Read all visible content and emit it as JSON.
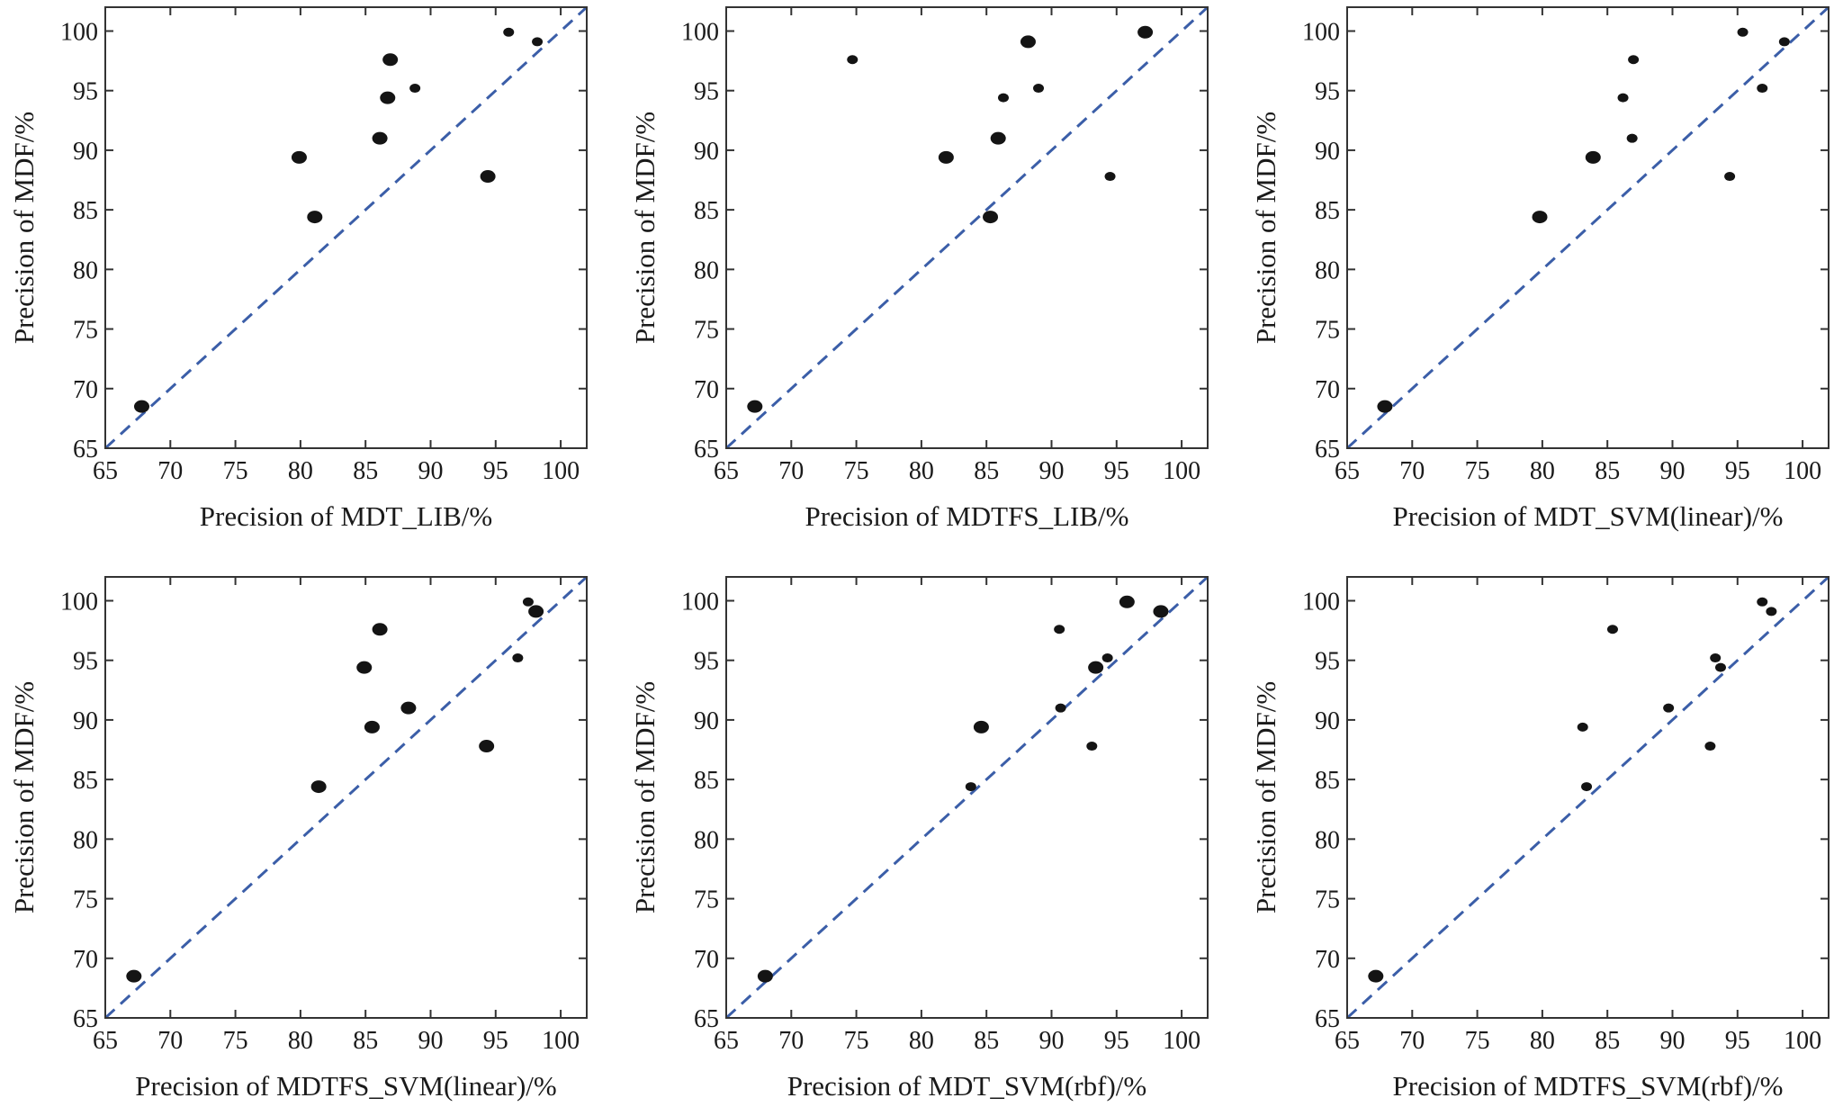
{
  "chart_data": [
    {
      "type": "scatter",
      "xlabel": "Precision of MDT_LIB/%",
      "ylabel": "Precision of  MDF/%",
      "xlim": [
        65,
        102
      ],
      "ylim": [
        65,
        102
      ],
      "xticks": [
        65,
        70,
        75,
        80,
        85,
        90,
        95,
        100
      ],
      "yticks": [
        65,
        70,
        75,
        80,
        85,
        90,
        95,
        100
      ],
      "reference_line": "y = x",
      "points": [
        {
          "x": 67.8,
          "y": 68.5,
          "size": "large"
        },
        {
          "x": 79.9,
          "y": 89.4,
          "size": "large"
        },
        {
          "x": 81.1,
          "y": 84.4,
          "size": "large"
        },
        {
          "x": 86.1,
          "y": 91.0,
          "size": "large"
        },
        {
          "x": 86.7,
          "y": 94.4,
          "size": "large"
        },
        {
          "x": 86.9,
          "y": 97.6,
          "size": "large"
        },
        {
          "x": 88.8,
          "y": 95.2,
          "size": "small"
        },
        {
          "x": 94.4,
          "y": 87.8,
          "size": "large"
        },
        {
          "x": 96.0,
          "y": 99.9,
          "size": "small"
        },
        {
          "x": 98.2,
          "y": 99.1,
          "size": "small"
        }
      ]
    },
    {
      "type": "scatter",
      "xlabel": "Precision of MDTFS_LIB/%",
      "ylabel": "Precision of  MDF/%",
      "xlim": [
        65,
        102
      ],
      "ylim": [
        65,
        102
      ],
      "xticks": [
        65,
        70,
        75,
        80,
        85,
        90,
        95,
        100
      ],
      "yticks": [
        65,
        70,
        75,
        80,
        85,
        90,
        95,
        100
      ],
      "reference_line": "y = x",
      "points": [
        {
          "x": 67.2,
          "y": 68.5,
          "size": "large"
        },
        {
          "x": 74.7,
          "y": 97.6,
          "size": "small"
        },
        {
          "x": 81.9,
          "y": 89.4,
          "size": "large"
        },
        {
          "x": 85.3,
          "y": 84.4,
          "size": "large"
        },
        {
          "x": 85.9,
          "y": 91.0,
          "size": "large"
        },
        {
          "x": 86.3,
          "y": 94.4,
          "size": "small"
        },
        {
          "x": 88.2,
          "y": 99.1,
          "size": "large"
        },
        {
          "x": 89.0,
          "y": 95.2,
          "size": "small"
        },
        {
          "x": 94.5,
          "y": 87.8,
          "size": "small"
        },
        {
          "x": 97.2,
          "y": 99.9,
          "size": "large"
        }
      ]
    },
    {
      "type": "scatter",
      "xlabel": "Precision of MDT_SVM(linear)/%",
      "ylabel": "Precision of  MDF/%",
      "xlim": [
        65,
        102
      ],
      "ylim": [
        65,
        102
      ],
      "xticks": [
        65,
        70,
        75,
        80,
        85,
        90,
        95,
        100
      ],
      "yticks": [
        65,
        70,
        75,
        80,
        85,
        90,
        95,
        100
      ],
      "reference_line": "y = x",
      "points": [
        {
          "x": 67.9,
          "y": 68.5,
          "size": "large"
        },
        {
          "x": 79.8,
          "y": 84.4,
          "size": "large"
        },
        {
          "x": 83.9,
          "y": 89.4,
          "size": "large"
        },
        {
          "x": 86.2,
          "y": 94.4,
          "size": "small"
        },
        {
          "x": 86.9,
          "y": 91.0,
          "size": "small"
        },
        {
          "x": 87.0,
          "y": 97.6,
          "size": "small"
        },
        {
          "x": 94.4,
          "y": 87.8,
          "size": "small"
        },
        {
          "x": 95.4,
          "y": 99.9,
          "size": "small"
        },
        {
          "x": 96.9,
          "y": 95.2,
          "size": "small"
        },
        {
          "x": 98.6,
          "y": 99.1,
          "size": "small"
        }
      ]
    },
    {
      "type": "scatter",
      "xlabel": "Precision of MDTFS_SVM(linear)/%",
      "ylabel": "Precision of MDF/%",
      "xlim": [
        65,
        102
      ],
      "ylim": [
        65,
        102
      ],
      "xticks": [
        65,
        70,
        75,
        80,
        85,
        90,
        95,
        100
      ],
      "yticks": [
        65,
        70,
        75,
        80,
        85,
        90,
        95,
        100
      ],
      "reference_line": "y = x",
      "points": [
        {
          "x": 67.2,
          "y": 68.5,
          "size": "large"
        },
        {
          "x": 81.4,
          "y": 84.4,
          "size": "large"
        },
        {
          "x": 84.9,
          "y": 94.4,
          "size": "large"
        },
        {
          "x": 85.5,
          "y": 89.4,
          "size": "large"
        },
        {
          "x": 86.1,
          "y": 97.6,
          "size": "large"
        },
        {
          "x": 88.3,
          "y": 91.0,
          "size": "large"
        },
        {
          "x": 94.3,
          "y": 87.8,
          "size": "large"
        },
        {
          "x": 96.7,
          "y": 95.2,
          "size": "small"
        },
        {
          "x": 97.5,
          "y": 99.9,
          "size": "small"
        },
        {
          "x": 98.1,
          "y": 99.1,
          "size": "large"
        }
      ]
    },
    {
      "type": "scatter",
      "xlabel": "Precision of MDT_SVM(rbf)/%",
      "ylabel": "Precision of  MDF/%",
      "xlim": [
        65,
        102
      ],
      "ylim": [
        65,
        102
      ],
      "xticks": [
        65,
        70,
        75,
        80,
        85,
        90,
        95,
        100
      ],
      "yticks": [
        65,
        70,
        75,
        80,
        85,
        90,
        95,
        100
      ],
      "reference_line": "y = x",
      "points": [
        {
          "x": 68.0,
          "y": 68.5,
          "size": "large"
        },
        {
          "x": 83.8,
          "y": 84.4,
          "size": "small"
        },
        {
          "x": 84.6,
          "y": 89.4,
          "size": "large"
        },
        {
          "x": 90.6,
          "y": 97.6,
          "size": "small"
        },
        {
          "x": 90.7,
          "y": 91.0,
          "size": "small"
        },
        {
          "x": 93.1,
          "y": 87.8,
          "size": "small"
        },
        {
          "x": 93.4,
          "y": 94.4,
          "size": "large"
        },
        {
          "x": 94.3,
          "y": 95.2,
          "size": "small"
        },
        {
          "x": 95.8,
          "y": 99.9,
          "size": "large"
        },
        {
          "x": 98.4,
          "y": 99.1,
          "size": "large"
        }
      ]
    },
    {
      "type": "scatter",
      "xlabel": "Precision of MDTFS_SVM(rbf)/%",
      "ylabel": "Precision of  MDF/%",
      "xlim": [
        65,
        102
      ],
      "ylim": [
        65,
        102
      ],
      "xticks": [
        65,
        70,
        75,
        80,
        85,
        90,
        95,
        100
      ],
      "yticks": [
        65,
        70,
        75,
        80,
        85,
        90,
        95,
        100
      ],
      "reference_line": "y = x",
      "points": [
        {
          "x": 67.2,
          "y": 68.5,
          "size": "large"
        },
        {
          "x": 83.1,
          "y": 89.4,
          "size": "small"
        },
        {
          "x": 83.4,
          "y": 84.4,
          "size": "small"
        },
        {
          "x": 85.4,
          "y": 97.6,
          "size": "small"
        },
        {
          "x": 89.7,
          "y": 91.0,
          "size": "small"
        },
        {
          "x": 92.9,
          "y": 87.8,
          "size": "small"
        },
        {
          "x": 93.3,
          "y": 95.2,
          "size": "small"
        },
        {
          "x": 93.7,
          "y": 94.4,
          "size": "small"
        },
        {
          "x": 96.9,
          "y": 99.9,
          "size": "small"
        },
        {
          "x": 97.6,
          "y": 99.1,
          "size": "small"
        }
      ]
    }
  ]
}
